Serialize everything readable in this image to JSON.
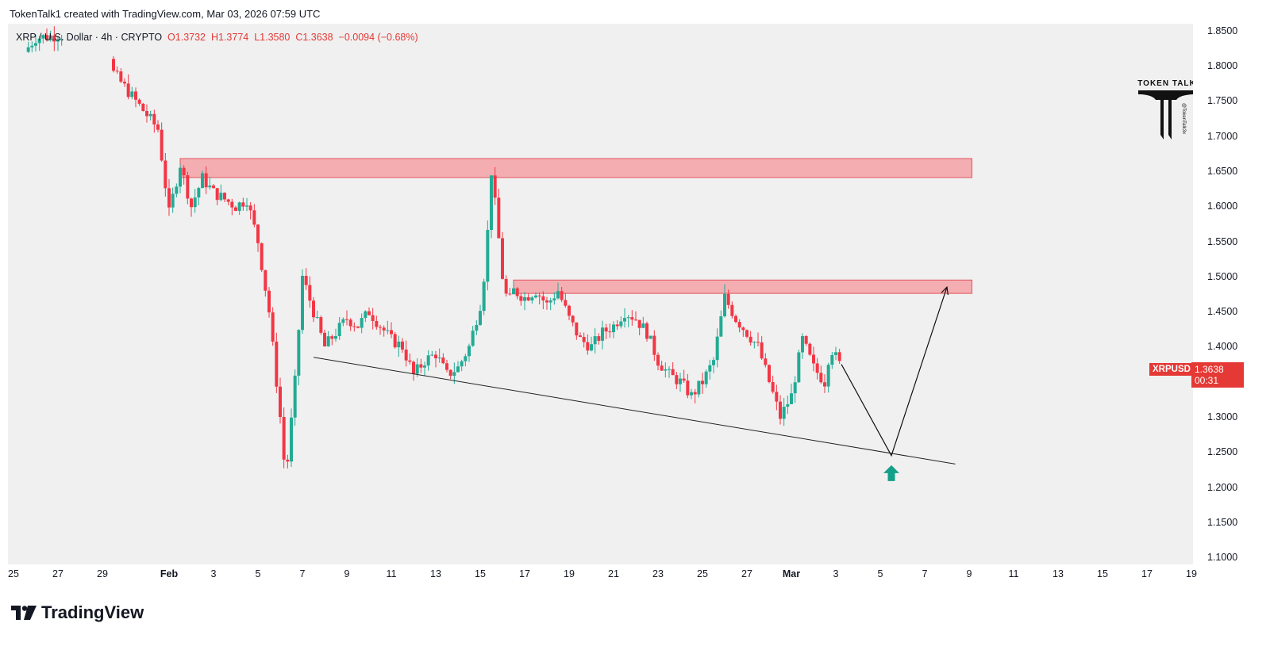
{
  "header": {
    "credit": "TokenTalk1 created with TradingView.com, Mar 03, 2026 07:59 UTC"
  },
  "legend": {
    "symbol": "XRP / U.S. Dollar · 4h · CRYPTO",
    "open": "O1.3732",
    "high": "H1.3774",
    "low": "L1.3580",
    "close": "C1.3638",
    "change": "−0.0094 (−0.68%)"
  },
  "logo": {
    "title": "TOKEN TALK",
    "handle": "@TokenTalk3x"
  },
  "price_tag": {
    "symbol": "XRPUSD",
    "price": "1.3638",
    "countdown": "00:31"
  },
  "brand": {
    "name": "TradingView"
  },
  "colors": {
    "up": "#22ab94",
    "down": "#f23645",
    "zone_fill": "#f4a6ab",
    "zone_border": "#e0545d",
    "arrow_up": "#13a089"
  },
  "chart_data": {
    "type": "candlestick",
    "title": "XRP / U.S. Dollar · 4h · CRYPTO",
    "ylim": [
      1.09,
      1.86
    ],
    "y_ticks": [
      "1.8500",
      "1.8000",
      "1.7500",
      "1.7000",
      "1.6500",
      "1.6000",
      "1.5500",
      "1.5000",
      "1.4500",
      "1.4000",
      "1.3500",
      "1.3000",
      "1.2500",
      "1.2000",
      "1.1500",
      "1.1000"
    ],
    "x_ticks": [
      "25",
      "27",
      "29",
      "Feb",
      "3",
      "5",
      "7",
      "9",
      "11",
      "13",
      "15",
      "17",
      "19",
      "21",
      "23",
      "25",
      "27",
      "Mar",
      "3",
      "5",
      "7",
      "9",
      "11",
      "13",
      "15",
      "17",
      "19"
    ],
    "x_ticks_bold": [
      "Feb",
      "Mar"
    ],
    "x_tick_dates": [
      "2026-01-25",
      "2026-01-27",
      "2026-01-29",
      "2026-02-01",
      "2026-02-03",
      "2026-02-05",
      "2026-02-07",
      "2026-02-09",
      "2026-02-11",
      "2026-02-13",
      "2026-02-15",
      "2026-02-17",
      "2026-02-19",
      "2026-02-21",
      "2026-02-23",
      "2026-02-25",
      "2026-02-27",
      "2026-03-01",
      "2026-03-03",
      "2026-03-05",
      "2026-03-07",
      "2026-03-09",
      "2026-03-11",
      "2026-03-13",
      "2026-03-15",
      "2026-03-17",
      "2026-03-19"
    ],
    "price_path": [
      [
        "2026-01-25 12:00",
        1.82
      ],
      [
        "2026-01-26 00:00",
        1.84
      ],
      [
        "2026-01-29 00:00",
        1.85
      ],
      [
        "2026-01-29 12:00",
        1.79
      ],
      [
        "2026-01-30 12:00",
        1.75
      ],
      [
        "2026-01-31 12:00",
        1.71
      ],
      [
        "2026-02-01 00:00",
        1.59
      ],
      [
        "2026-02-01 12:00",
        1.66
      ],
      [
        "2026-02-02 00:00",
        1.6
      ],
      [
        "2026-02-02 12:00",
        1.64
      ],
      [
        "2026-02-03 00:00",
        1.62
      ],
      [
        "2026-02-04 00:00",
        1.6
      ],
      [
        "2026-02-04 12:00",
        1.61
      ],
      [
        "2026-02-05 00:00",
        1.55
      ],
      [
        "2026-02-05 12:00",
        1.45
      ],
      [
        "2026-02-06 00:00",
        1.3
      ],
      [
        "2026-02-06 06:00",
        1.21
      ],
      [
        "2026-02-06 16:00",
        1.35
      ],
      [
        "2026-02-07 00:00",
        1.5
      ],
      [
        "2026-02-07 12:00",
        1.45
      ],
      [
        "2026-02-08 00:00",
        1.4
      ],
      [
        "2026-02-08 12:00",
        1.42
      ],
      [
        "2026-02-09 00:00",
        1.44
      ],
      [
        "2026-02-09 12:00",
        1.43
      ],
      [
        "2026-02-10 00:00",
        1.45
      ],
      [
        "2026-02-10 12:00",
        1.43
      ],
      [
        "2026-02-11 00:00",
        1.41
      ],
      [
        "2026-02-11 12:00",
        1.4
      ],
      [
        "2026-02-12 00:00",
        1.36
      ],
      [
        "2026-02-12 12:00",
        1.38
      ],
      [
        "2026-02-13 00:00",
        1.39
      ],
      [
        "2026-02-13 12:00",
        1.36
      ],
      [
        "2026-02-14 00:00",
        1.37
      ],
      [
        "2026-02-14 12:00",
        1.4
      ],
      [
        "2026-02-15 00:00",
        1.46
      ],
      [
        "2026-02-15 06:00",
        1.52
      ],
      [
        "2026-02-15 12:00",
        1.65
      ],
      [
        "2026-02-15 18:00",
        1.58
      ],
      [
        "2026-02-16 00:00",
        1.5
      ],
      [
        "2026-02-16 06:00",
        1.46
      ],
      [
        "2026-02-16 12:00",
        1.48
      ],
      [
        "2026-02-17 00:00",
        1.47
      ],
      [
        "2026-02-17 12:00",
        1.48
      ],
      [
        "2026-02-18 00:00",
        1.46
      ],
      [
        "2026-02-18 12:00",
        1.48
      ],
      [
        "2026-02-19 00:00",
        1.44
      ],
      [
        "2026-02-19 12:00",
        1.41
      ],
      [
        "2026-02-20 00:00",
        1.4
      ],
      [
        "2026-02-20 12:00",
        1.42
      ],
      [
        "2026-02-21 00:00",
        1.43
      ],
      [
        "2026-02-21 12:00",
        1.45
      ],
      [
        "2026-02-22 00:00",
        1.44
      ],
      [
        "2026-02-22 12:00",
        1.42
      ],
      [
        "2026-02-23 00:00",
        1.38
      ],
      [
        "2026-02-23 12:00",
        1.36
      ],
      [
        "2026-02-24 00:00",
        1.35
      ],
      [
        "2026-02-24 12:00",
        1.33
      ],
      [
        "2026-02-25 00:00",
        1.35
      ],
      [
        "2026-02-25 12:00",
        1.38
      ],
      [
        "2026-02-26 00:00",
        1.47
      ],
      [
        "2026-02-26 12:00",
        1.44
      ],
      [
        "2026-02-27 00:00",
        1.42
      ],
      [
        "2026-02-27 12:00",
        1.4
      ],
      [
        "2026-02-28 00:00",
        1.35
      ],
      [
        "2026-02-28 12:00",
        1.3
      ],
      [
        "2026-03-01 00:00",
        1.33
      ],
      [
        "2026-03-01 12:00",
        1.41
      ],
      [
        "2026-03-02 00:00",
        1.37
      ],
      [
        "2026-03-02 12:00",
        1.35
      ],
      [
        "2026-03-02 18:00",
        1.4
      ],
      [
        "2026-03-03 06:00",
        1.37
      ]
    ],
    "resistance_zones": [
      {
        "x0": "2026-02-01 12:00",
        "x1": "2026-03-09 03:00",
        "y0": 1.641,
        "y1": 1.668
      },
      {
        "x0": "2026-02-16 12:00",
        "x1": "2026-03-09 03:00",
        "y0": 1.476,
        "y1": 1.495
      }
    ],
    "support_trendline": {
      "x0": "2026-02-07 12:00",
      "y0": 1.385,
      "x1": "2026-03-08 09:00",
      "y1": 1.233
    },
    "projection_path": [
      [
        "2026-03-03 06:00",
        1.375
      ],
      [
        "2026-03-05 12:00",
        1.245
      ],
      [
        "2026-03-08 00:00",
        1.485
      ]
    ],
    "arrow_up_marker": {
      "x": "2026-03-05 12:00",
      "y": 1.22
    }
  }
}
